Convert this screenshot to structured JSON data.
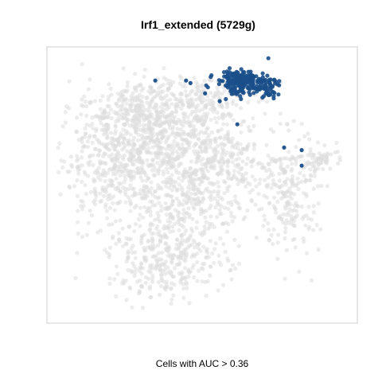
{
  "chart_data": {
    "type": "scatter",
    "title": "Irf1_extended (5729g)",
    "xlabel": "",
    "ylabel": "",
    "caption": "Cells with AUC > 0.36",
    "auc_threshold": 0.36,
    "axes_visible": false,
    "grid": false,
    "legend": "none",
    "xlim": [
      0,
      100
    ],
    "ylim": [
      0,
      100
    ],
    "colors": {
      "background_cells": "#dcdcdc",
      "highlighted_cells": "#1a4f8a",
      "frame": "#cfcfcf"
    },
    "series": [
      {
        "cluster_groups": [
          {
            "cx": 20,
            "cy": 62,
            "sx": 9,
            "sy": 13,
            "n": 520
          },
          {
            "cx": 35,
            "cy": 70,
            "sx": 8,
            "sy": 9,
            "n": 300
          },
          {
            "cx": 45,
            "cy": 52,
            "sx": 9,
            "sy": 14,
            "n": 420
          },
          {
            "cx": 58,
            "cy": 58,
            "sx": 8,
            "sy": 10,
            "n": 260
          },
          {
            "cx": 38,
            "cy": 22,
            "sx": 10,
            "sy": 8,
            "n": 340
          },
          {
            "cx": 47,
            "cy": 84,
            "sx": 9,
            "sy": 5,
            "n": 180
          },
          {
            "cx": 80,
            "cy": 47,
            "sx": 5,
            "sy": 12,
            "n": 220
          },
          {
            "cx": 90,
            "cy": 60,
            "sx": 4,
            "sy": 2.5,
            "n": 60
          },
          {
            "cx": 27,
            "cy": 80,
            "sx": 6,
            "sy": 4,
            "n": 90
          }
        ]
      },
      {
        "cluster_groups": [
          {
            "cx": 64,
            "cy": 90,
            "sx": 6,
            "sy": 3,
            "n": 190
          },
          {
            "cx": 72,
            "cy": 88,
            "sx": 3,
            "sy": 2.5,
            "n": 40
          },
          {
            "cx": 62,
            "cy": 93,
            "sx": 2.5,
            "sy": 1.5,
            "n": 25
          }
        ],
        "outliers": [
          {
            "x": 34,
            "y": 91
          },
          {
            "x": 44.5,
            "y": 91
          },
          {
            "x": 46,
            "y": 90
          },
          {
            "x": 51,
            "y": 86
          },
          {
            "x": 56,
            "y": 83
          },
          {
            "x": 62,
            "y": 74
          },
          {
            "x": 78,
            "y": 65
          },
          {
            "x": 84,
            "y": 64
          },
          {
            "x": 84,
            "y": 58
          }
        ]
      }
    ]
  }
}
